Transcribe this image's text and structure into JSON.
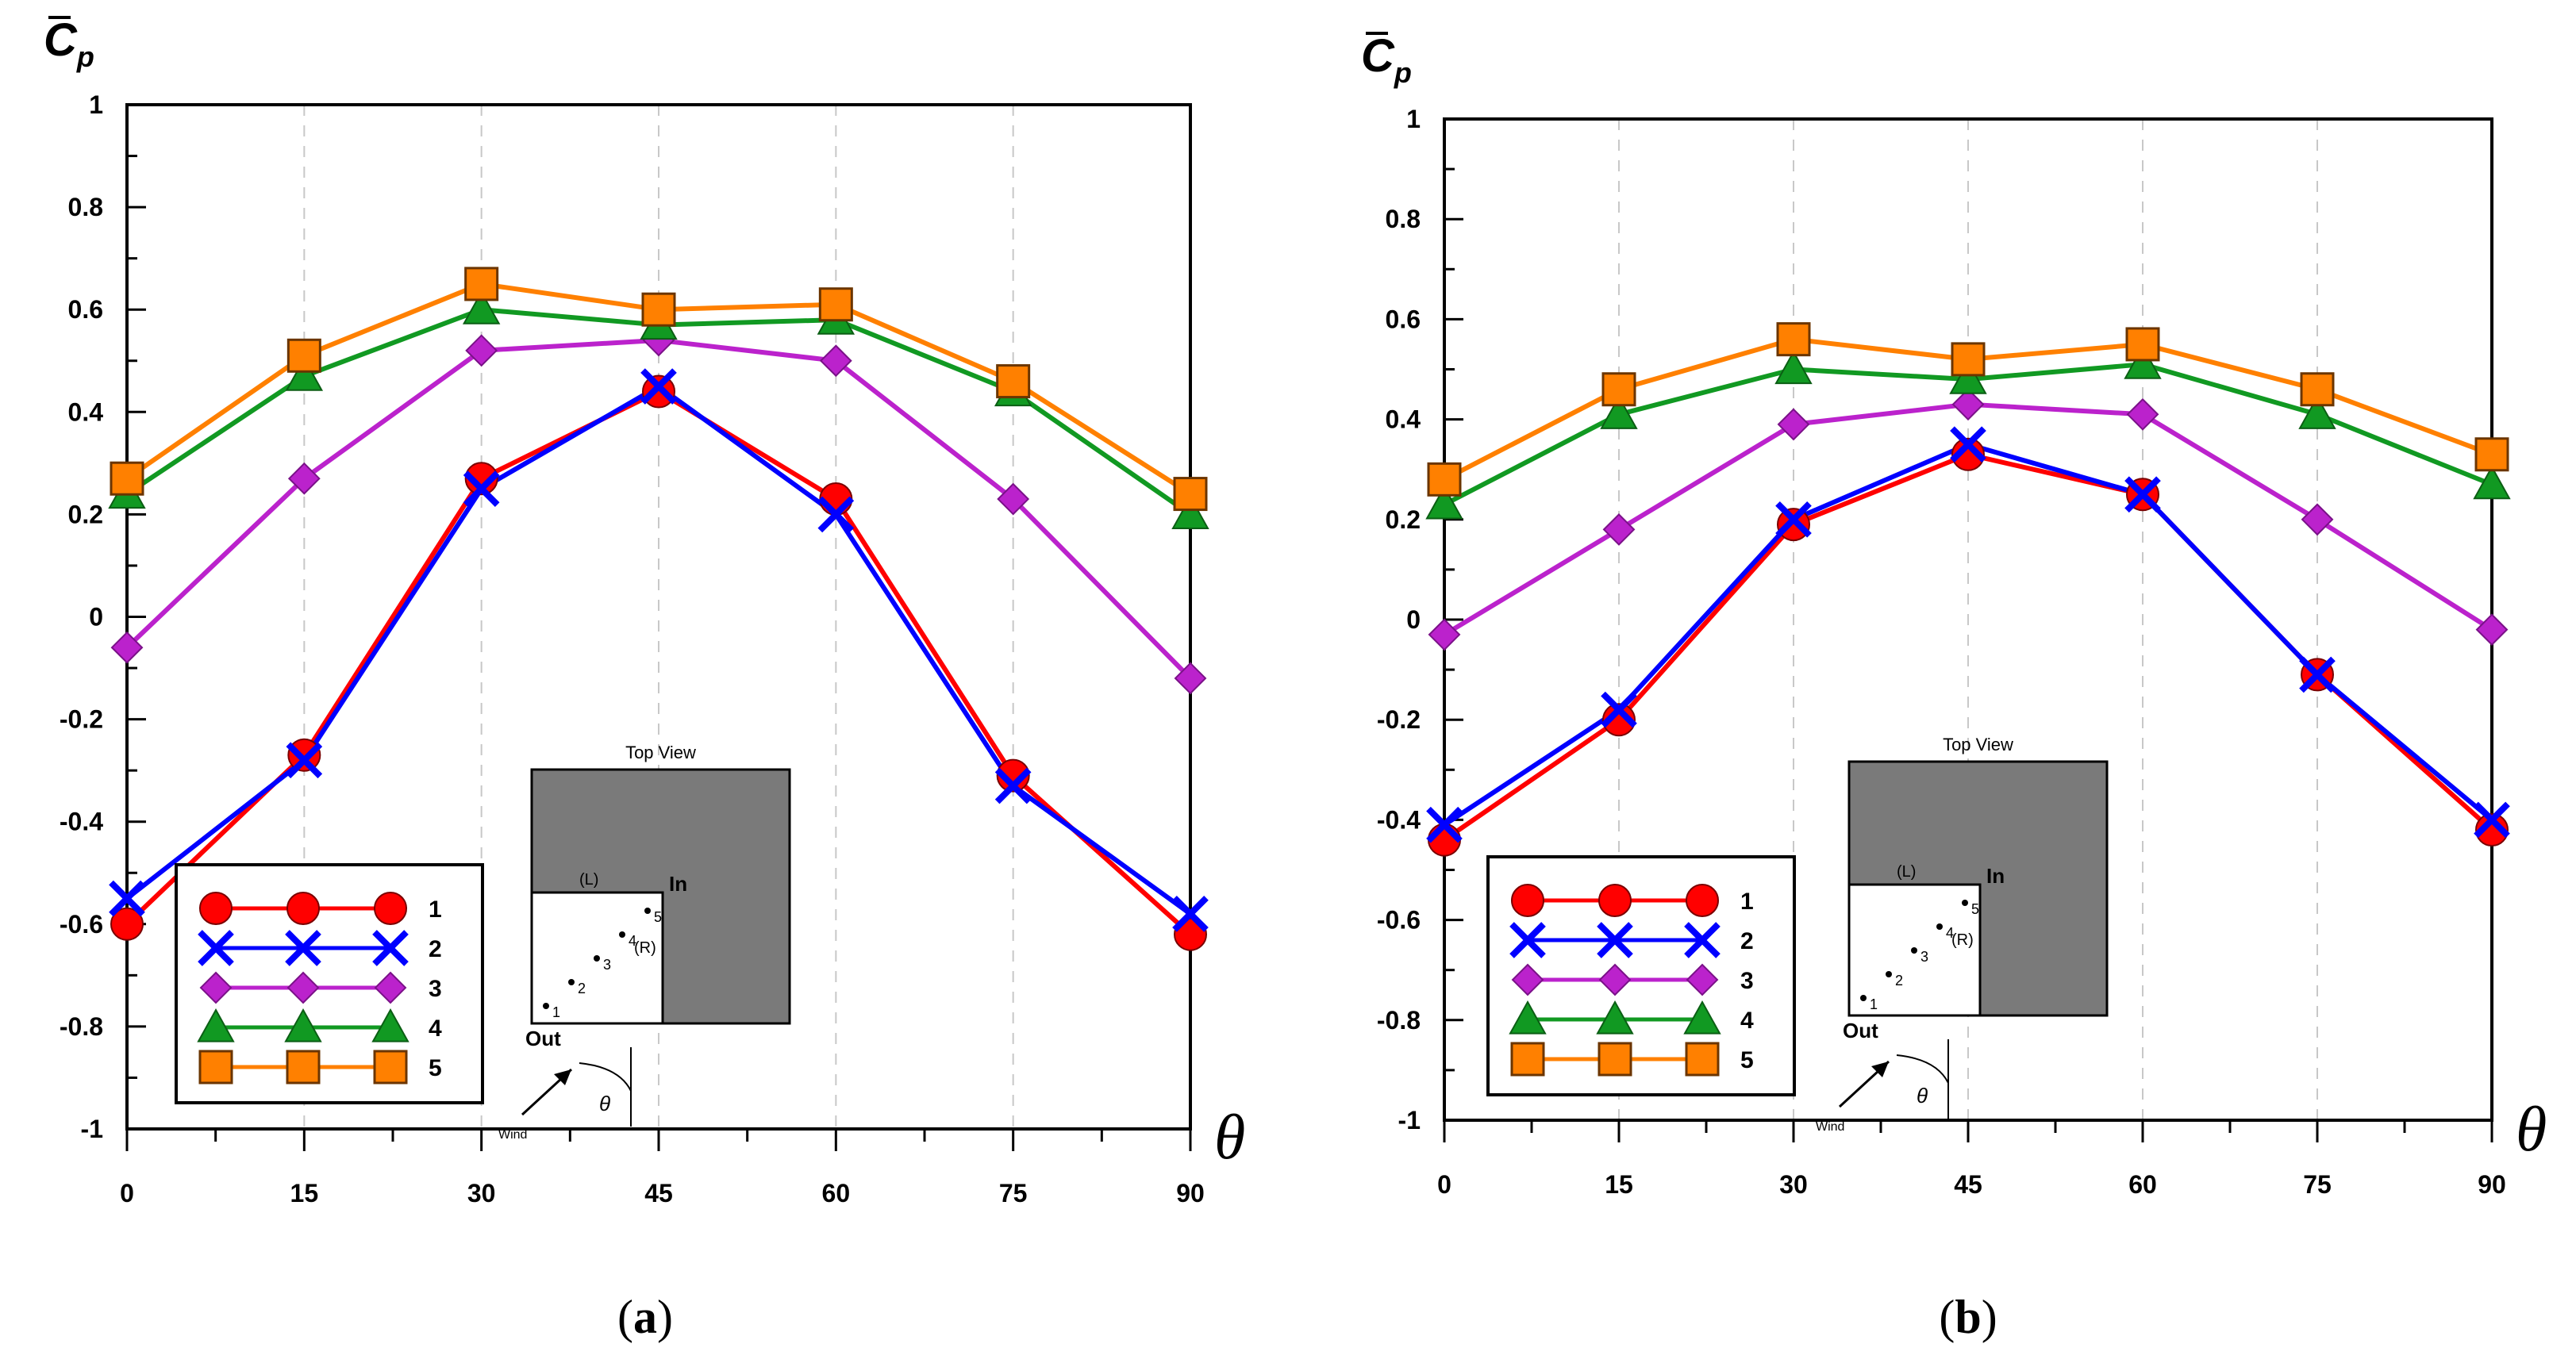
{
  "chart_data": [
    {
      "type": "line",
      "panel_label": "(a)",
      "ylabel": "C̄p",
      "xlabel": "θ",
      "x": [
        0,
        15,
        30,
        45,
        60,
        75,
        90
      ],
      "xlim": [
        0,
        90
      ],
      "ylim": [
        -1,
        1
      ],
      "yticks": [
        "1",
        "0.8",
        "0.6",
        "0.4",
        "0.2",
        "0",
        "-0.2",
        "-0.4",
        "-0.6",
        "-0.8",
        "-1"
      ],
      "xticks": [
        "0",
        "15",
        "30",
        "45",
        "60",
        "75",
        "90"
      ],
      "grid": "vertical dashed",
      "legend_position": "bottom-left",
      "series": [
        {
          "name": "1",
          "marker": "circle",
          "color": "#ff0000",
          "values": [
            -0.6,
            -0.27,
            0.27,
            0.44,
            0.23,
            -0.31,
            -0.62
          ]
        },
        {
          "name": "2",
          "marker": "x",
          "color": "#0000ff",
          "values": [
            -0.55,
            -0.28,
            0.25,
            0.45,
            0.2,
            -0.33,
            -0.58
          ]
        },
        {
          "name": "3",
          "marker": "diamond",
          "color": "#bb22cc",
          "values": [
            -0.06,
            0.27,
            0.52,
            0.54,
            0.5,
            0.23,
            -0.12
          ]
        },
        {
          "name": "4",
          "marker": "triangle",
          "color": "#119922",
          "values": [
            0.24,
            0.47,
            0.6,
            0.57,
            0.58,
            0.44,
            0.2
          ]
        },
        {
          "name": "5",
          "marker": "square",
          "color": "#ff8000",
          "values": [
            0.27,
            0.51,
            0.65,
            0.6,
            0.61,
            0.46,
            0.24
          ]
        }
      ],
      "inset": {
        "title": "Top View",
        "labels": [
          "(L)",
          "In",
          "(R)",
          "Out",
          "Wind",
          "θ"
        ],
        "points": [
          "1",
          "2",
          "3",
          "4",
          "5"
        ]
      }
    },
    {
      "type": "line",
      "panel_label": "(b)",
      "ylabel": "C̄p",
      "xlabel": "θ",
      "x": [
        0,
        15,
        30,
        45,
        60,
        75,
        90
      ],
      "xlim": [
        0,
        90
      ],
      "ylim": [
        -1,
        1
      ],
      "yticks": [
        "1",
        "0.8",
        "0.6",
        "0.4",
        "0.2",
        "0",
        "-0.2",
        "-0.4",
        "-0.6",
        "-0.8",
        "-1"
      ],
      "xticks": [
        "0",
        "15",
        "30",
        "45",
        "60",
        "75",
        "90"
      ],
      "grid": "vertical dashed",
      "legend_position": "bottom-left",
      "series": [
        {
          "name": "1",
          "marker": "circle",
          "color": "#ff0000",
          "values": [
            -0.44,
            -0.2,
            0.19,
            0.33,
            0.25,
            -0.11,
            -0.42
          ]
        },
        {
          "name": "2",
          "marker": "x",
          "color": "#0000ff",
          "values": [
            -0.41,
            -0.18,
            0.2,
            0.35,
            0.25,
            -0.11,
            -0.4
          ]
        },
        {
          "name": "3",
          "marker": "diamond",
          "color": "#bb22cc",
          "values": [
            -0.03,
            0.18,
            0.39,
            0.43,
            0.41,
            0.2,
            -0.02
          ]
        },
        {
          "name": "4",
          "marker": "triangle",
          "color": "#119922",
          "values": [
            0.23,
            0.41,
            0.5,
            0.48,
            0.51,
            0.41,
            0.27
          ]
        },
        {
          "name": "5",
          "marker": "square",
          "color": "#ff8000",
          "values": [
            0.28,
            0.46,
            0.56,
            0.52,
            0.55,
            0.46,
            0.33
          ]
        }
      ],
      "inset": {
        "title": "Top View",
        "labels": [
          "(L)",
          "In",
          "(R)",
          "Out",
          "Wind",
          "θ"
        ],
        "points": [
          "1",
          "2",
          "3",
          "4",
          "5"
        ]
      }
    }
  ]
}
